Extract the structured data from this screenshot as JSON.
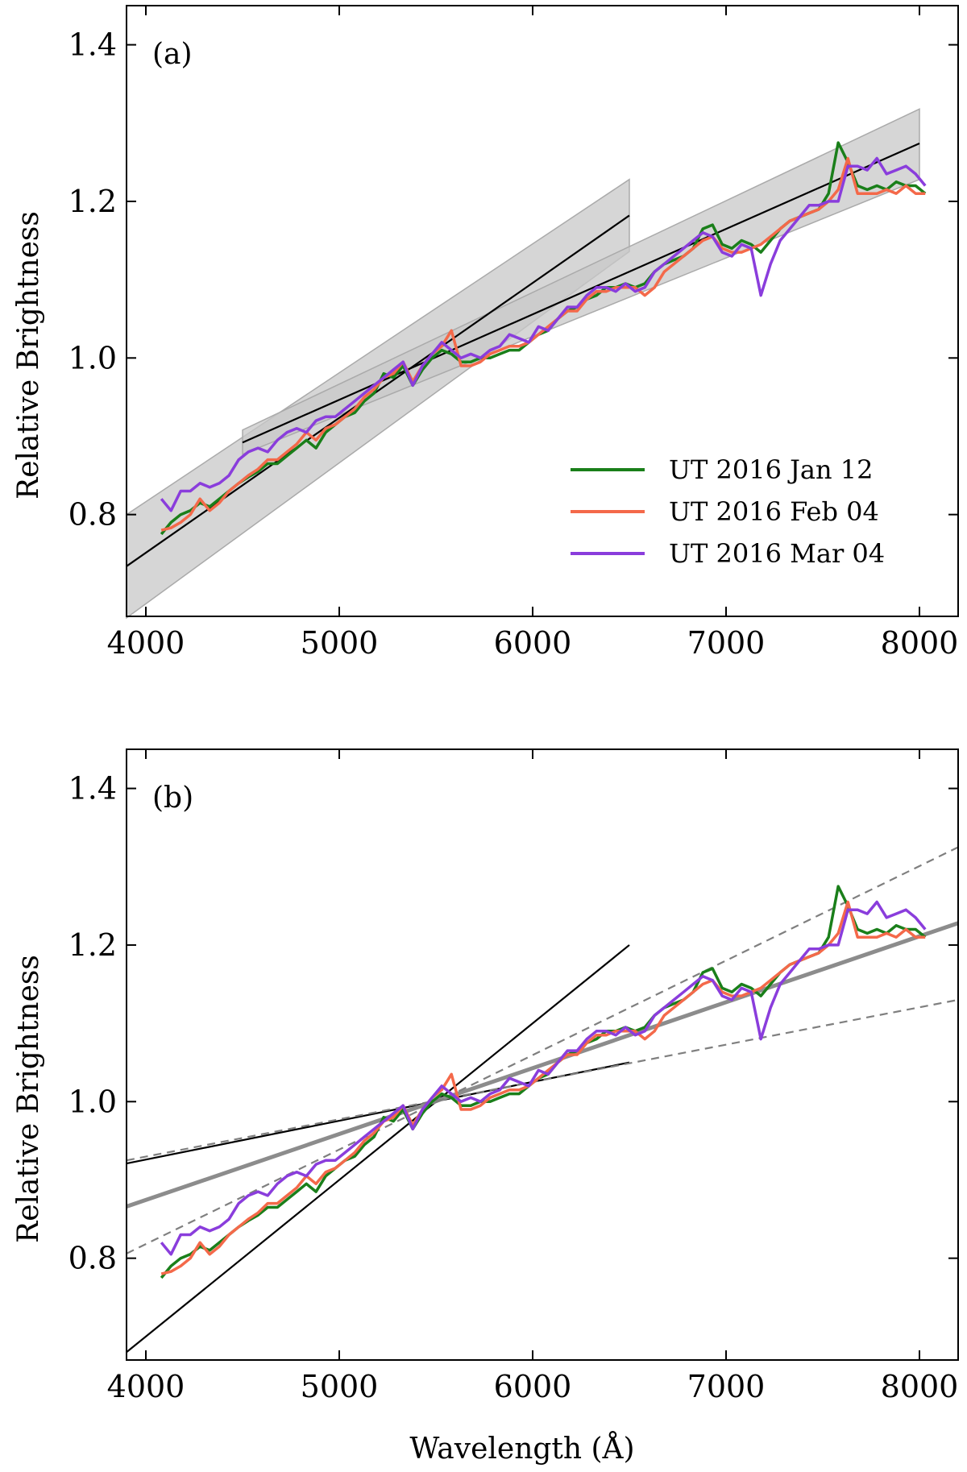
{
  "colors": {
    "jan": "#1a7f1a",
    "feb": "#f4694a",
    "mar": "#8a3ddc",
    "fit": "#000000",
    "band": "#c8c8c8",
    "mean_fit": "#8c8c8c",
    "dashed": "#7f7f7f"
  },
  "chart_data": [
    {
      "type": "line",
      "panel_label": "(a)",
      "xlabel": "",
      "ylabel": "Relative Brightness",
      "xlim": [
        3900,
        8200
      ],
      "ylim": [
        0.67,
        1.45
      ],
      "xticks": [
        "4000",
        "5000",
        "6000",
        "7000",
        "8000"
      ],
      "yticks": [
        "0.8",
        "1.0",
        "1.2",
        "1.4"
      ],
      "legend": {
        "position": "lower-right",
        "entries": [
          "UT 2016 Jan 12",
          "UT 2016 Feb 04",
          "UT 2016 Mar 04"
        ]
      },
      "series": [
        {
          "name": "UT 2016 Jan 12",
          "color_key": "jan",
          "x": [
            4080,
            4130,
            4180,
            4230,
            4280,
            4330,
            4380,
            4430,
            4480,
            4530,
            4580,
            4630,
            4680,
            4730,
            4780,
            4830,
            4880,
            4930,
            4980,
            5030,
            5080,
            5130,
            5180,
            5230,
            5280,
            5330,
            5380,
            5430,
            5480,
            5530,
            5580,
            5630,
            5680,
            5730,
            5780,
            5830,
            5880,
            5930,
            5980,
            6030,
            6080,
            6130,
            6180,
            6230,
            6280,
            6330,
            6380,
            6430,
            6480,
            6530,
            6580,
            6630,
            6680,
            6730,
            6780,
            6830,
            6880,
            6930,
            6980,
            7030,
            7080,
            7130,
            7180,
            7230,
            7280,
            7330,
            7380,
            7430,
            7480,
            7530,
            7580,
            7630,
            7680,
            7730,
            7780,
            7830,
            7880,
            7930,
            7980,
            8030
          ],
          "y": [
            0.775,
            0.79,
            0.8,
            0.805,
            0.815,
            0.81,
            0.82,
            0.83,
            0.84,
            0.848,
            0.855,
            0.865,
            0.865,
            0.875,
            0.885,
            0.895,
            0.885,
            0.905,
            0.915,
            0.925,
            0.93,
            0.945,
            0.955,
            0.98,
            0.975,
            0.99,
            0.965,
            0.985,
            1.0,
            1.01,
            1.005,
            0.995,
            0.995,
            1.0,
            1.0,
            1.005,
            1.01,
            1.01,
            1.02,
            1.03,
            1.035,
            1.05,
            1.06,
            1.065,
            1.075,
            1.08,
            1.09,
            1.09,
            1.095,
            1.09,
            1.095,
            1.11,
            1.12,
            1.125,
            1.13,
            1.14,
            1.165,
            1.17,
            1.145,
            1.14,
            1.15,
            1.145,
            1.135,
            1.15,
            1.165,
            1.175,
            1.18,
            1.185,
            1.19,
            1.21,
            1.275,
            1.25,
            1.22,
            1.215,
            1.22,
            1.215,
            1.225,
            1.22,
            1.22,
            1.21
          ]
        },
        {
          "name": "UT 2016 Feb 04",
          "color_key": "feb",
          "x": [
            4080,
            4130,
            4180,
            4230,
            4280,
            4330,
            4380,
            4430,
            4480,
            4530,
            4580,
            4630,
            4680,
            4730,
            4780,
            4830,
            4880,
            4930,
            4980,
            5030,
            5080,
            5130,
            5180,
            5230,
            5280,
            5330,
            5380,
            5430,
            5480,
            5530,
            5580,
            5630,
            5680,
            5730,
            5780,
            5830,
            5880,
            5930,
            5980,
            6030,
            6080,
            6130,
            6180,
            6230,
            6280,
            6330,
            6380,
            6430,
            6480,
            6530,
            6580,
            6630,
            6680,
            6730,
            6780,
            6830,
            6880,
            6930,
            6980,
            7030,
            7080,
            7130,
            7180,
            7230,
            7280,
            7330,
            7380,
            7430,
            7480,
            7530,
            7580,
            7630,
            7680,
            7730,
            7780,
            7830,
            7880,
            7930,
            7980,
            8030
          ],
          "y": [
            0.78,
            0.783,
            0.79,
            0.8,
            0.82,
            0.805,
            0.815,
            0.83,
            0.84,
            0.85,
            0.858,
            0.87,
            0.87,
            0.88,
            0.89,
            0.905,
            0.895,
            0.91,
            0.915,
            0.925,
            0.935,
            0.95,
            0.96,
            0.975,
            0.98,
            0.995,
            0.97,
            0.99,
            1.005,
            1.015,
            1.035,
            0.99,
            0.99,
            0.995,
            1.005,
            1.01,
            1.015,
            1.015,
            1.02,
            1.03,
            1.04,
            1.05,
            1.06,
            1.06,
            1.075,
            1.085,
            1.085,
            1.09,
            1.09,
            1.09,
            1.08,
            1.09,
            1.11,
            1.12,
            1.13,
            1.14,
            1.15,
            1.155,
            1.14,
            1.135,
            1.135,
            1.14,
            1.145,
            1.155,
            1.165,
            1.175,
            1.18,
            1.185,
            1.19,
            1.2,
            1.215,
            1.255,
            1.21,
            1.21,
            1.21,
            1.215,
            1.21,
            1.22,
            1.21,
            1.21
          ]
        },
        {
          "name": "UT 2016 Mar 04",
          "color_key": "mar",
          "x": [
            4080,
            4130,
            4180,
            4230,
            4280,
            4330,
            4380,
            4430,
            4480,
            4530,
            4580,
            4630,
            4680,
            4730,
            4780,
            4830,
            4880,
            4930,
            4980,
            5030,
            5080,
            5130,
            5180,
            5230,
            5280,
            5330,
            5380,
            5430,
            5480,
            5530,
            5580,
            5630,
            5680,
            5730,
            5780,
            5830,
            5880,
            5930,
            5980,
            6030,
            6080,
            6130,
            6180,
            6230,
            6280,
            6330,
            6380,
            6430,
            6480,
            6530,
            6580,
            6630,
            6680,
            6730,
            6780,
            6830,
            6880,
            6930,
            6980,
            7030,
            7080,
            7130,
            7180,
            7230,
            7280,
            7330,
            7380,
            7430,
            7480,
            7530,
            7580,
            7630,
            7680,
            7730,
            7780,
            7830,
            7880,
            7930,
            7980,
            8030
          ],
          "y": [
            0.82,
            0.805,
            0.83,
            0.83,
            0.84,
            0.835,
            0.84,
            0.85,
            0.87,
            0.88,
            0.885,
            0.88,
            0.895,
            0.905,
            0.91,
            0.905,
            0.92,
            0.925,
            0.925,
            0.935,
            0.945,
            0.955,
            0.965,
            0.975,
            0.985,
            0.995,
            0.965,
            0.99,
            1.005,
            1.02,
            1.01,
            1.0,
            1.005,
            1.0,
            1.01,
            1.015,
            1.03,
            1.025,
            1.02,
            1.04,
            1.035,
            1.05,
            1.065,
            1.065,
            1.08,
            1.09,
            1.09,
            1.085,
            1.095,
            1.085,
            1.09,
            1.11,
            1.12,
            1.13,
            1.14,
            1.15,
            1.16,
            1.155,
            1.135,
            1.13,
            1.145,
            1.14,
            1.08,
            1.12,
            1.15,
            1.165,
            1.18,
            1.195,
            1.195,
            1.2,
            1.2,
            1.245,
            1.245,
            1.24,
            1.255,
            1.235,
            1.24,
            1.245,
            1.235,
            1.22
          ]
        }
      ],
      "fits": [
        {
          "name": "fit-blue",
          "x": [
            3900,
            6500
          ],
          "y": [
            0.734,
            1.182
          ]
        },
        {
          "name": "fit-red",
          "x": [
            4500,
            8000
          ],
          "y": [
            0.892,
            1.274
          ]
        }
      ],
      "bands": [
        {
          "name": "band-blue",
          "x": [
            3900,
            6500
          ],
          "y_low": [
            0.668,
            1.136
          ],
          "y_high": [
            0.8,
            1.228
          ]
        },
        {
          "name": "band-red",
          "x": [
            4500,
            8000
          ],
          "y_low": [
            0.877,
            1.228
          ],
          "y_high": [
            0.908,
            1.318
          ]
        }
      ]
    },
    {
      "type": "line",
      "panel_label": "(b)",
      "xlabel": "Wavelength (Å)",
      "ylabel": "Relative Brightness",
      "xlim": [
        3900,
        8200
      ],
      "ylim": [
        0.67,
        1.45
      ],
      "xticks": [
        "4000",
        "5000",
        "6000",
        "7000",
        "8000"
      ],
      "yticks": [
        "0.8",
        "1.0",
        "1.2",
        "1.4"
      ],
      "series_ref": "same as panel (a)",
      "lines": [
        {
          "name": "steep-fit-line",
          "style": "solid",
          "color_key": "fit",
          "width": 2.2,
          "x": [
            3900,
            6500
          ],
          "y": [
            0.68,
            1.2
          ]
        },
        {
          "name": "shallow-fit-line",
          "style": "solid",
          "color_key": "fit",
          "width": 2.2,
          "x": [
            3900,
            6500
          ],
          "y": [
            0.921,
            1.05
          ]
        },
        {
          "name": "mean-fit-line",
          "style": "solid",
          "color_key": "mean_fit",
          "width": 5,
          "x": [
            3900,
            8200
          ],
          "y": [
            0.866,
            1.228
          ]
        },
        {
          "name": "upper-dashed-line",
          "style": "dashed",
          "color_key": "dashed",
          "width": 2.2,
          "x": [
            3900,
            8200
          ],
          "y": [
            0.806,
            1.325
          ]
        },
        {
          "name": "lower-dashed-line",
          "style": "dashed",
          "color_key": "dashed",
          "width": 2.2,
          "x": [
            3900,
            8200
          ],
          "y": [
            0.925,
            1.13
          ]
        }
      ]
    }
  ]
}
